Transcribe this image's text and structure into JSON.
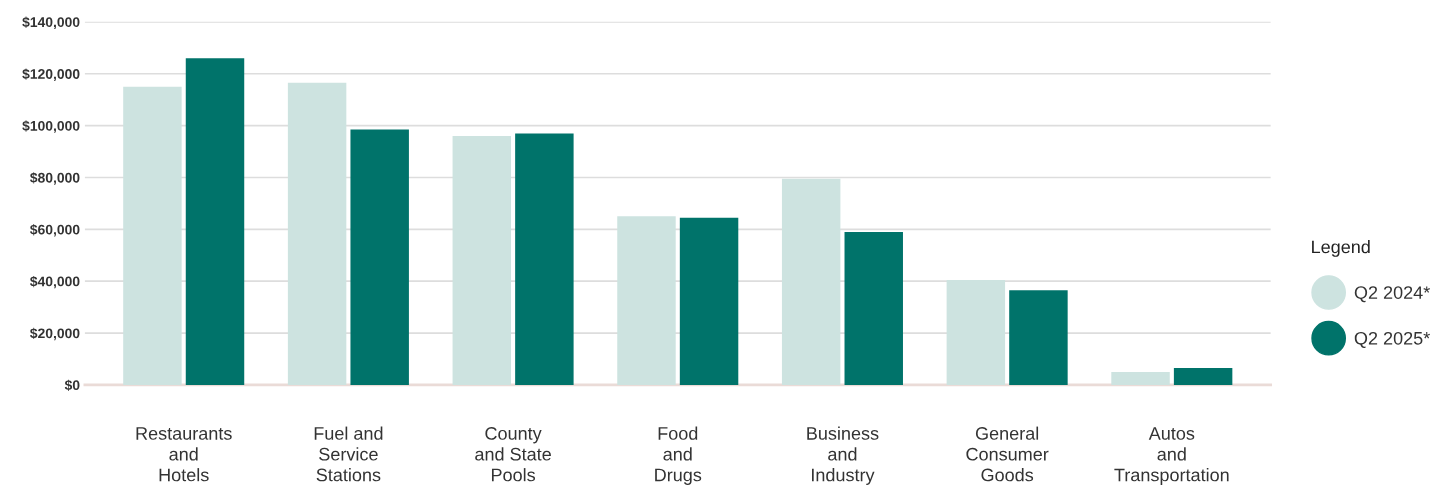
{
  "chart_data": {
    "type": "bar",
    "categories": [
      "Restaurants\nand\nHotels",
      "Fuel and\nService\nStations",
      "County\nand State\nPools",
      "Food\nand\nDrugs",
      "Business\nand\nIndustry",
      "General\nConsumer\nGoods",
      "Autos\nand\nTransportation"
    ],
    "series": [
      {
        "name": "Q2 2024*",
        "color": "#cde3e0",
        "values": [
          115000,
          116500,
          96000,
          65000,
          79500,
          40500,
          5000
        ]
      },
      {
        "name": "Q2 2025*",
        "color": "#00736a",
        "values": [
          126000,
          98500,
          97000,
          64500,
          59000,
          36500,
          6500
        ]
      }
    ],
    "ylim": [
      0,
      140000
    ],
    "yticks": [
      {
        "value": 0,
        "label": "$0"
      },
      {
        "value": 20000,
        "label": "$20,000"
      },
      {
        "value": 40000,
        "label": "$40,000"
      },
      {
        "value": 60000,
        "label": "$60,000"
      },
      {
        "value": 80000,
        "label": "$80,000"
      },
      {
        "value": 100000,
        "label": "$100,000"
      },
      {
        "value": 120000,
        "label": "$120,000"
      },
      {
        "value": 140000,
        "label": "$140,000"
      }
    ],
    "grid": "y",
    "legend": "right",
    "legend_title": "Legend"
  }
}
